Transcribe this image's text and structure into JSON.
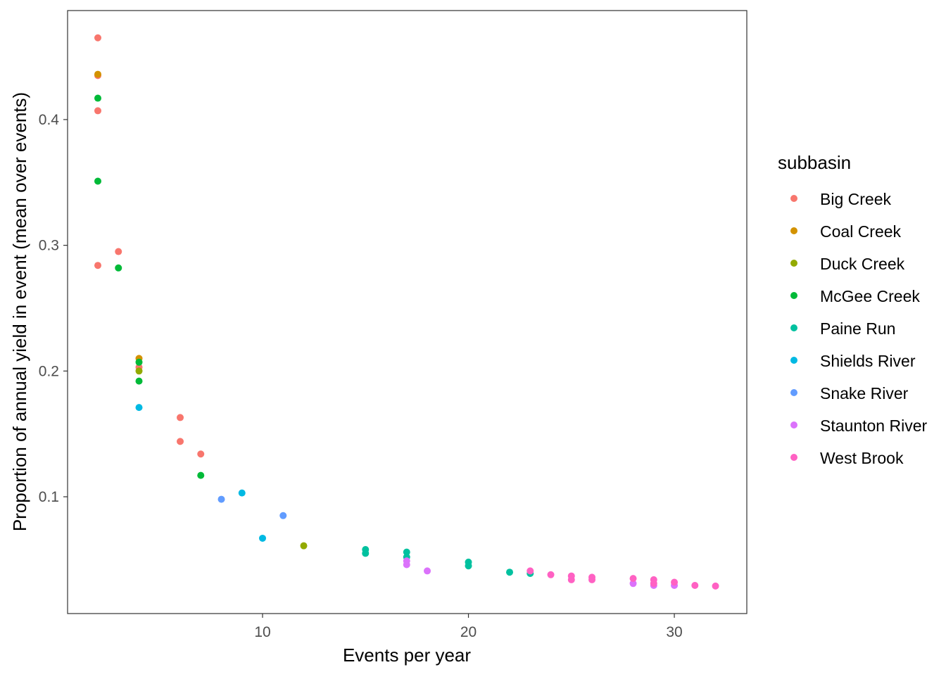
{
  "chart_data": {
    "type": "scatter",
    "title": "",
    "xlabel": "Events per year",
    "ylabel": "Proportion of annual yield in event (mean over events)",
    "xlim": [
      0.53,
      33.52
    ],
    "ylim": [
      0.0071,
      0.4867
    ],
    "xticks": [
      10,
      20,
      30
    ],
    "yticks": [
      0.1,
      0.2,
      0.3,
      0.4
    ],
    "ytick_labels": [
      "0.1",
      "0.2",
      "0.3",
      "0.4"
    ],
    "xtick_labels": [
      "10",
      "20",
      "30"
    ],
    "grid": false,
    "legend": {
      "title": "subbasin",
      "position": "right"
    },
    "series": [
      {
        "name": "Big Creek",
        "color": "#F8766D",
        "points": [
          [
            2,
            0.465
          ],
          [
            2,
            0.435
          ],
          [
            2,
            0.407
          ],
          [
            2,
            0.284
          ],
          [
            3,
            0.295
          ],
          [
            4,
            0.203
          ],
          [
            6,
            0.163
          ],
          [
            6,
            0.144
          ],
          [
            7,
            0.134
          ]
        ]
      },
      {
        "name": "Coal Creek",
        "color": "#D39200",
        "points": [
          [
            2,
            0.436
          ],
          [
            4,
            0.21
          ]
        ]
      },
      {
        "name": "Duck Creek",
        "color": "#93AA00",
        "points": [
          [
            4,
            0.2
          ],
          [
            12,
            0.061
          ]
        ]
      },
      {
        "name": "McGee Creek",
        "color": "#00BA38",
        "points": [
          [
            2,
            0.417
          ],
          [
            2,
            0.351
          ],
          [
            3,
            0.282
          ],
          [
            4,
            0.207
          ],
          [
            4,
            0.192
          ],
          [
            7,
            0.117
          ]
        ]
      },
      {
        "name": "Paine Run",
        "color": "#00C19F",
        "points": [
          [
            15,
            0.058
          ],
          [
            15,
            0.055
          ],
          [
            17,
            0.056
          ],
          [
            17,
            0.052
          ],
          [
            20,
            0.048
          ],
          [
            20,
            0.045
          ],
          [
            22,
            0.04
          ],
          [
            23,
            0.039
          ]
        ]
      },
      {
        "name": "Shields River",
        "color": "#00B9E3",
        "points": [
          [
            4,
            0.171
          ],
          [
            9,
            0.103
          ],
          [
            10,
            0.067
          ]
        ]
      },
      {
        "name": "Snake River",
        "color": "#619CFF",
        "points": [
          [
            8,
            0.098
          ],
          [
            11,
            0.085
          ]
        ]
      },
      {
        "name": "Staunton River",
        "color": "#DB72FB",
        "points": [
          [
            17,
            0.049
          ],
          [
            17,
            0.046
          ],
          [
            18,
            0.041
          ],
          [
            28,
            0.031
          ],
          [
            29,
            0.0295
          ],
          [
            30,
            0.0295
          ]
        ]
      },
      {
        "name": "West Brook",
        "color": "#FF61C3",
        "points": [
          [
            23,
            0.041
          ],
          [
            24,
            0.038
          ],
          [
            25,
            0.037
          ],
          [
            25,
            0.034
          ],
          [
            26,
            0.036
          ],
          [
            26,
            0.034
          ],
          [
            28,
            0.035
          ],
          [
            29,
            0.034
          ],
          [
            29,
            0.031
          ],
          [
            30,
            0.032
          ],
          [
            31,
            0.0295
          ],
          [
            32,
            0.029
          ]
        ]
      }
    ]
  }
}
